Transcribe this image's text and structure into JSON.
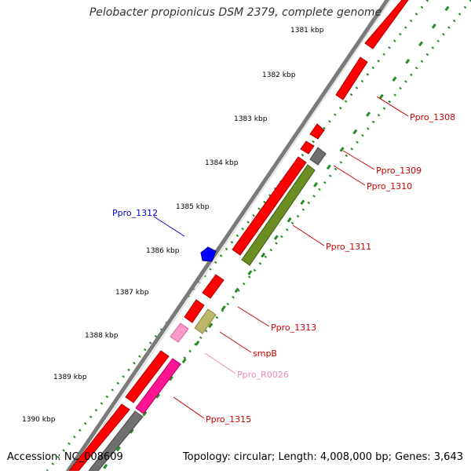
{
  "title": "Pelobacter propionicus DSM 2379, complete genome",
  "footer": {
    "accession": "Accession: NC_008609",
    "summary": "Topology: circular; Length: 4,008,000 bp; Genes: 3,643"
  },
  "ruler": {
    "labels": [
      "1381 kbp",
      "1382 kbp",
      "1383 kbp",
      "1384 kbp",
      "1385 kbp",
      "1386 kbp",
      "1387 kbp",
      "1388 kbp",
      "1389 kbp",
      "1390 kbp"
    ]
  },
  "genes": [
    {
      "label": "Ppro_1308",
      "color": "#cc0000"
    },
    {
      "label": "Ppro_1309",
      "color": "#cc0000"
    },
    {
      "label": "Ppro_1310",
      "color": "#cc0000"
    },
    {
      "label": "Ppro_1311",
      "color": "#cc0000"
    },
    {
      "label": "Ppro_1312",
      "color": "#0000cc"
    },
    {
      "label": "Ppro_1313",
      "color": "#cc0000"
    },
    {
      "label": "smpB",
      "color": "#cc0000"
    },
    {
      "label": "Ppro_R0026",
      "color": "#ee88bb"
    },
    {
      "label": "Ppro_1315",
      "color": "#cc0000"
    }
  ],
  "colors": {
    "cds": "#ff0000",
    "trna": "#ff0080",
    "other": "#707070",
    "rrna": "#6b8e23",
    "misc": "#bdb76b",
    "ncrna": "#ff99cc",
    "blue_feature": "#0000ff",
    "ruler": "#228b22",
    "backbone": "#808080"
  }
}
